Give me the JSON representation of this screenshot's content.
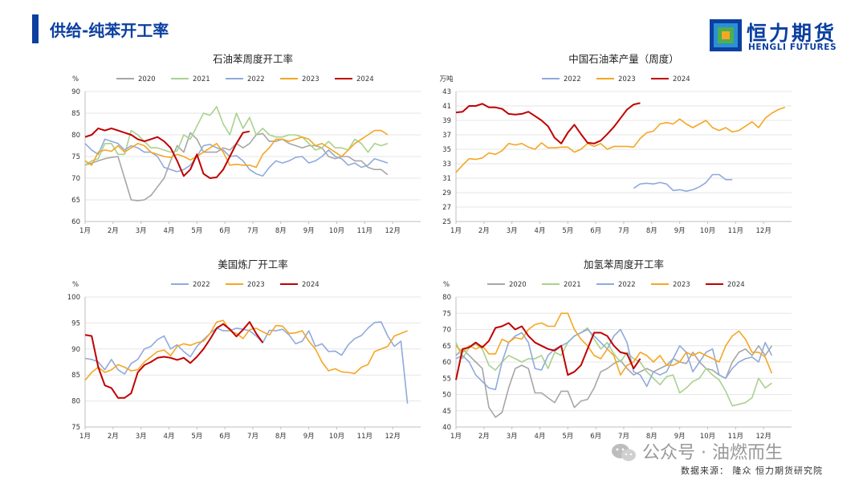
{
  "header": {
    "title": "供给-纯苯开工率",
    "logo_cn": "恒力期货",
    "logo_en": "HENGLI FUTURES",
    "accent_color": "#0b3fa0"
  },
  "footer": {
    "watermark": "公众号 · 油燃而生",
    "source": "数据来源：  隆众  恒力期货研究院"
  },
  "series_colors": {
    "2020": "#a6a6a6",
    "2021": "#a9d18e",
    "2022": "#8faadc",
    "2023": "#f5a623",
    "2024": "#c00000"
  },
  "chart_data": [
    {
      "type": "line",
      "title": "石油苯周度开工率",
      "unit": "%",
      "months": [
        "1月",
        "2月",
        "3月",
        "4月",
        "5月",
        "6月",
        "7月",
        "8月",
        "9月",
        "10月",
        "11月",
        "12月"
      ],
      "ylim": [
        60,
        90
      ],
      "yticks": [
        60,
        65,
        70,
        75,
        80,
        85,
        90
      ],
      "series": [
        {
          "name": "2020",
          "values": [
            73,
            73.5,
            74,
            74.5,
            74.8,
            75,
            70,
            65,
            64.8,
            65,
            66,
            68,
            70,
            74,
            77.5,
            76,
            80.5,
            79,
            76,
            76,
            76,
            77,
            76.5,
            78,
            77,
            78,
            80,
            80.3,
            78.5,
            78.5,
            79,
            78,
            77.5,
            77,
            77.5,
            77.5,
            77,
            75,
            74.5,
            75,
            75,
            74,
            74,
            72.5,
            72,
            72,
            70.8
          ]
        },
        {
          "name": "2021",
          "values": [
            73,
            74,
            74.5,
            78,
            78,
            75.5,
            75.5,
            81,
            80,
            78.5,
            77,
            77,
            76.5,
            76,
            76.3,
            80,
            79,
            82,
            85,
            84.5,
            86.5,
            82.5,
            80,
            85,
            81.5,
            84,
            80,
            81.5,
            80,
            79.5,
            79.5,
            80,
            80,
            79.5,
            78,
            76.5,
            77,
            78.5,
            77,
            77,
            76.5,
            79,
            78,
            76,
            78,
            77.5,
            78
          ]
        },
        {
          "name": "2022",
          "values": [
            78,
            76.5,
            75.5,
            79,
            78.5,
            78,
            76.5,
            77.5,
            77,
            76,
            76,
            75,
            72.5,
            72,
            71.5,
            72,
            73,
            75,
            77.5,
            77.8,
            77,
            76.5,
            75,
            75.2,
            74,
            72,
            71,
            70.5,
            72.5,
            74,
            73.5,
            74,
            74.8,
            75,
            73.5,
            74,
            75,
            76.5,
            75,
            74.5,
            73,
            73.5,
            72.5,
            73,
            74.5,
            74,
            73.5
          ]
        },
        {
          "name": "2023",
          "values": [
            74,
            73,
            76,
            76.5,
            76.2,
            77.5,
            76,
            77,
            78,
            77.5,
            76,
            75.5,
            75,
            74.8,
            75.5,
            75,
            74.2,
            75,
            76,
            77,
            78,
            76,
            73,
            73.2,
            73,
            73,
            72.5,
            75.5,
            77,
            79,
            79,
            78.5,
            79,
            79.5,
            79,
            77.5,
            78,
            77,
            76,
            75,
            76.5,
            78,
            79,
            80,
            81,
            81,
            80
          ]
        },
        {
          "name": "2024",
          "values": [
            79.5,
            80,
            81.5,
            81,
            81.5,
            81,
            80.5,
            80,
            79,
            78.5,
            79,
            79.5,
            78.5,
            77,
            74,
            70.5,
            72,
            75.5,
            71,
            70,
            70.2,
            72,
            75,
            78,
            80.5,
            80.8
          ]
        }
      ]
    },
    {
      "type": "line",
      "title": "中国石油苯产量（周度）",
      "unit": "万吨",
      "months": [
        "1月",
        "2月",
        "3月",
        "4月",
        "5月",
        "6月",
        "7月",
        "8月",
        "9月",
        "10月",
        "11月",
        "12月"
      ],
      "ylim": [
        25,
        43
      ],
      "yticks": [
        25,
        27,
        29,
        31,
        33,
        35,
        37,
        39,
        41,
        43
      ],
      "series": [
        {
          "name": "2022",
          "offset": 27,
          "values": [
            29.6,
            30.2,
            30.3,
            30.2,
            30.4,
            30.2,
            29.3,
            29.4,
            29.2,
            29.4,
            29.8,
            30.4,
            31.5,
            31.5,
            30.8,
            30.8
          ]
        },
        {
          "name": "2023",
          "values": [
            31.8,
            32.8,
            33.7,
            33.6,
            33.8,
            34.5,
            34.3,
            34.8,
            35.8,
            35.6,
            35.8,
            35.3,
            35.0,
            35.9,
            35.2,
            35.2,
            35.3,
            35.3,
            34.6,
            35.0,
            35.8,
            35.4,
            35.8,
            35.0,
            35.4,
            35.4,
            35.4,
            35.3,
            36.5,
            37.3,
            37.5,
            38.5,
            38.7,
            38.5,
            39.2,
            38.5,
            38.0,
            38.5,
            39.0,
            38.0,
            37.6,
            38.0,
            37.4,
            37.6,
            38.2,
            38.8,
            38.0,
            39.3,
            40.0,
            40.5,
            40.8
          ]
        },
        {
          "name": "2024",
          "values": [
            40.1,
            40.2,
            41.0,
            41.0,
            41.3,
            40.8,
            40.8,
            40.6,
            39.9,
            39.8,
            39.9,
            40.2,
            39.6,
            39.0,
            38.2,
            36.6,
            35.8,
            37.3,
            38.4,
            37.1,
            35.9,
            35.8,
            36.2,
            37.1,
            38.1,
            39.3,
            40.5,
            41.2,
            41.4
          ]
        }
      ]
    },
    {
      "type": "line",
      "title": "美国炼厂开工率",
      "unit": "%",
      "months": [
        "1月",
        "2月",
        "3月",
        "4月",
        "5月",
        "6月",
        "7月",
        "8月",
        "9月",
        "10月",
        "11月",
        "12月"
      ],
      "ylim": [
        75,
        100
      ],
      "yticks": [
        75,
        80,
        85,
        90,
        95,
        100
      ],
      "series": [
        {
          "name": "2022",
          "values": [
            88.2,
            88,
            87.5,
            86,
            88,
            86,
            85.2,
            87.2,
            88,
            90,
            90.5,
            91.8,
            92.5,
            90,
            90.8,
            89.5,
            88.5,
            90.5,
            91.8,
            93,
            94,
            93.5,
            93.5,
            94,
            93.8,
            93.5,
            92.5,
            91.2,
            93.6,
            93.5,
            93.8,
            92.7,
            91,
            91.5,
            93.5,
            90.5,
            91,
            89.5,
            89.6,
            88.8,
            90.8,
            92,
            92.6,
            94,
            95.1,
            95.2,
            92.5,
            90.5,
            91.5,
            79.5
          ]
        },
        {
          "name": "2023",
          "values": [
            84,
            85.5,
            86.5,
            85.5,
            86,
            87,
            86.5,
            85.8,
            86,
            87.5,
            88.5,
            89.5,
            89.8,
            88.7,
            90.5,
            91,
            90.7,
            91.2,
            91.5,
            93,
            95.2,
            95.5,
            93.5,
            93,
            92,
            93.7,
            94,
            93.3,
            92.7,
            94.5,
            94.4,
            93,
            93.1,
            93.5,
            91.5,
            90,
            87.5,
            85.8,
            86.2,
            85.6,
            85.5,
            85.3,
            86.5,
            87,
            89.5,
            90,
            90.5,
            92.5,
            93,
            93.5
          ]
        },
        {
          "name": "2024",
          "values": [
            92.7,
            92.5,
            86.5,
            83,
            82.5,
            80.6,
            80.6,
            81.5,
            85.5,
            86.9,
            87.5,
            88.3,
            88.5,
            88.3,
            87.9,
            88.3,
            87.3,
            88.5,
            90,
            91.9,
            94,
            94.8,
            93.8,
            92.4,
            93.7,
            95.2,
            93,
            91.2
          ]
        }
      ]
    },
    {
      "type": "line",
      "title": "加氢苯周度开工率",
      "unit": "%",
      "months": [
        "1月",
        "2月",
        "3月",
        "4月",
        "5月",
        "6月",
        "7月",
        "8月",
        "9月",
        "10月",
        "11月",
        "12月"
      ],
      "ylim": [
        40,
        80
      ],
      "yticks": [
        40,
        45,
        50,
        55,
        60,
        65,
        70,
        75,
        80
      ],
      "series": [
        {
          "name": "2020",
          "values": [
            62,
            64,
            62,
            60,
            58,
            46,
            43,
            44.5,
            52,
            58,
            59,
            58,
            50.5,
            50.5,
            49,
            47.5,
            51,
            51,
            46,
            48,
            48.5,
            52,
            57,
            58,
            59.5,
            60.5,
            58,
            56,
            57,
            58,
            57,
            58,
            59,
            61,
            60,
            59.5,
            63,
            60,
            58,
            57.5,
            56,
            55,
            60,
            63,
            64,
            62,
            65,
            62,
            65
          ]
        },
        {
          "name": "2021",
          "values": [
            66,
            61,
            64.5,
            65.5,
            64,
            59,
            57.5,
            60,
            62,
            61,
            60,
            61,
            61,
            62,
            58,
            63,
            62,
            66,
            68,
            69,
            70.5,
            67,
            64,
            66,
            62.5,
            60,
            63,
            61,
            60,
            57,
            55,
            53,
            55.5,
            56,
            50.5,
            52,
            54,
            55,
            58,
            56,
            54.5,
            51,
            46.5,
            47,
            47.5,
            49,
            55,
            52,
            53.5
          ]
        },
        {
          "name": "2022",
          "values": [
            61,
            62,
            60,
            56,
            54,
            52,
            51.5,
            60,
            66,
            68,
            69,
            66,
            58,
            57.5,
            62,
            64,
            65,
            66,
            68,
            69,
            70,
            68,
            66,
            64,
            68,
            70,
            66,
            57,
            56,
            52.5,
            57,
            56,
            57,
            61,
            65,
            63,
            57,
            60,
            63,
            64,
            56,
            55,
            58,
            60,
            61,
            61.5,
            60,
            66,
            62
          ]
        },
        {
          "name": "2023",
          "values": [
            65,
            63,
            65,
            64,
            65,
            62.5,
            62.5,
            67,
            66,
            67.5,
            67,
            70,
            71.5,
            72,
            71,
            71,
            75,
            75,
            70,
            67,
            65,
            62,
            61,
            64,
            62,
            56,
            59,
            60,
            63,
            62,
            60,
            62,
            59,
            59,
            60,
            63,
            62,
            63,
            62,
            61,
            60,
            65,
            68,
            69.5,
            67,
            63,
            63,
            61.5,
            56.5
          ]
        },
        {
          "name": "2024",
          "values": [
            54.5,
            64,
            64.5,
            66,
            64.5,
            66.5,
            70.5,
            71,
            72,
            70,
            71,
            68,
            66,
            65,
            64,
            63.5,
            65,
            56,
            57,
            59,
            64,
            69,
            69,
            68,
            65,
            63,
            62.5,
            58,
            61
          ]
        }
      ]
    }
  ]
}
